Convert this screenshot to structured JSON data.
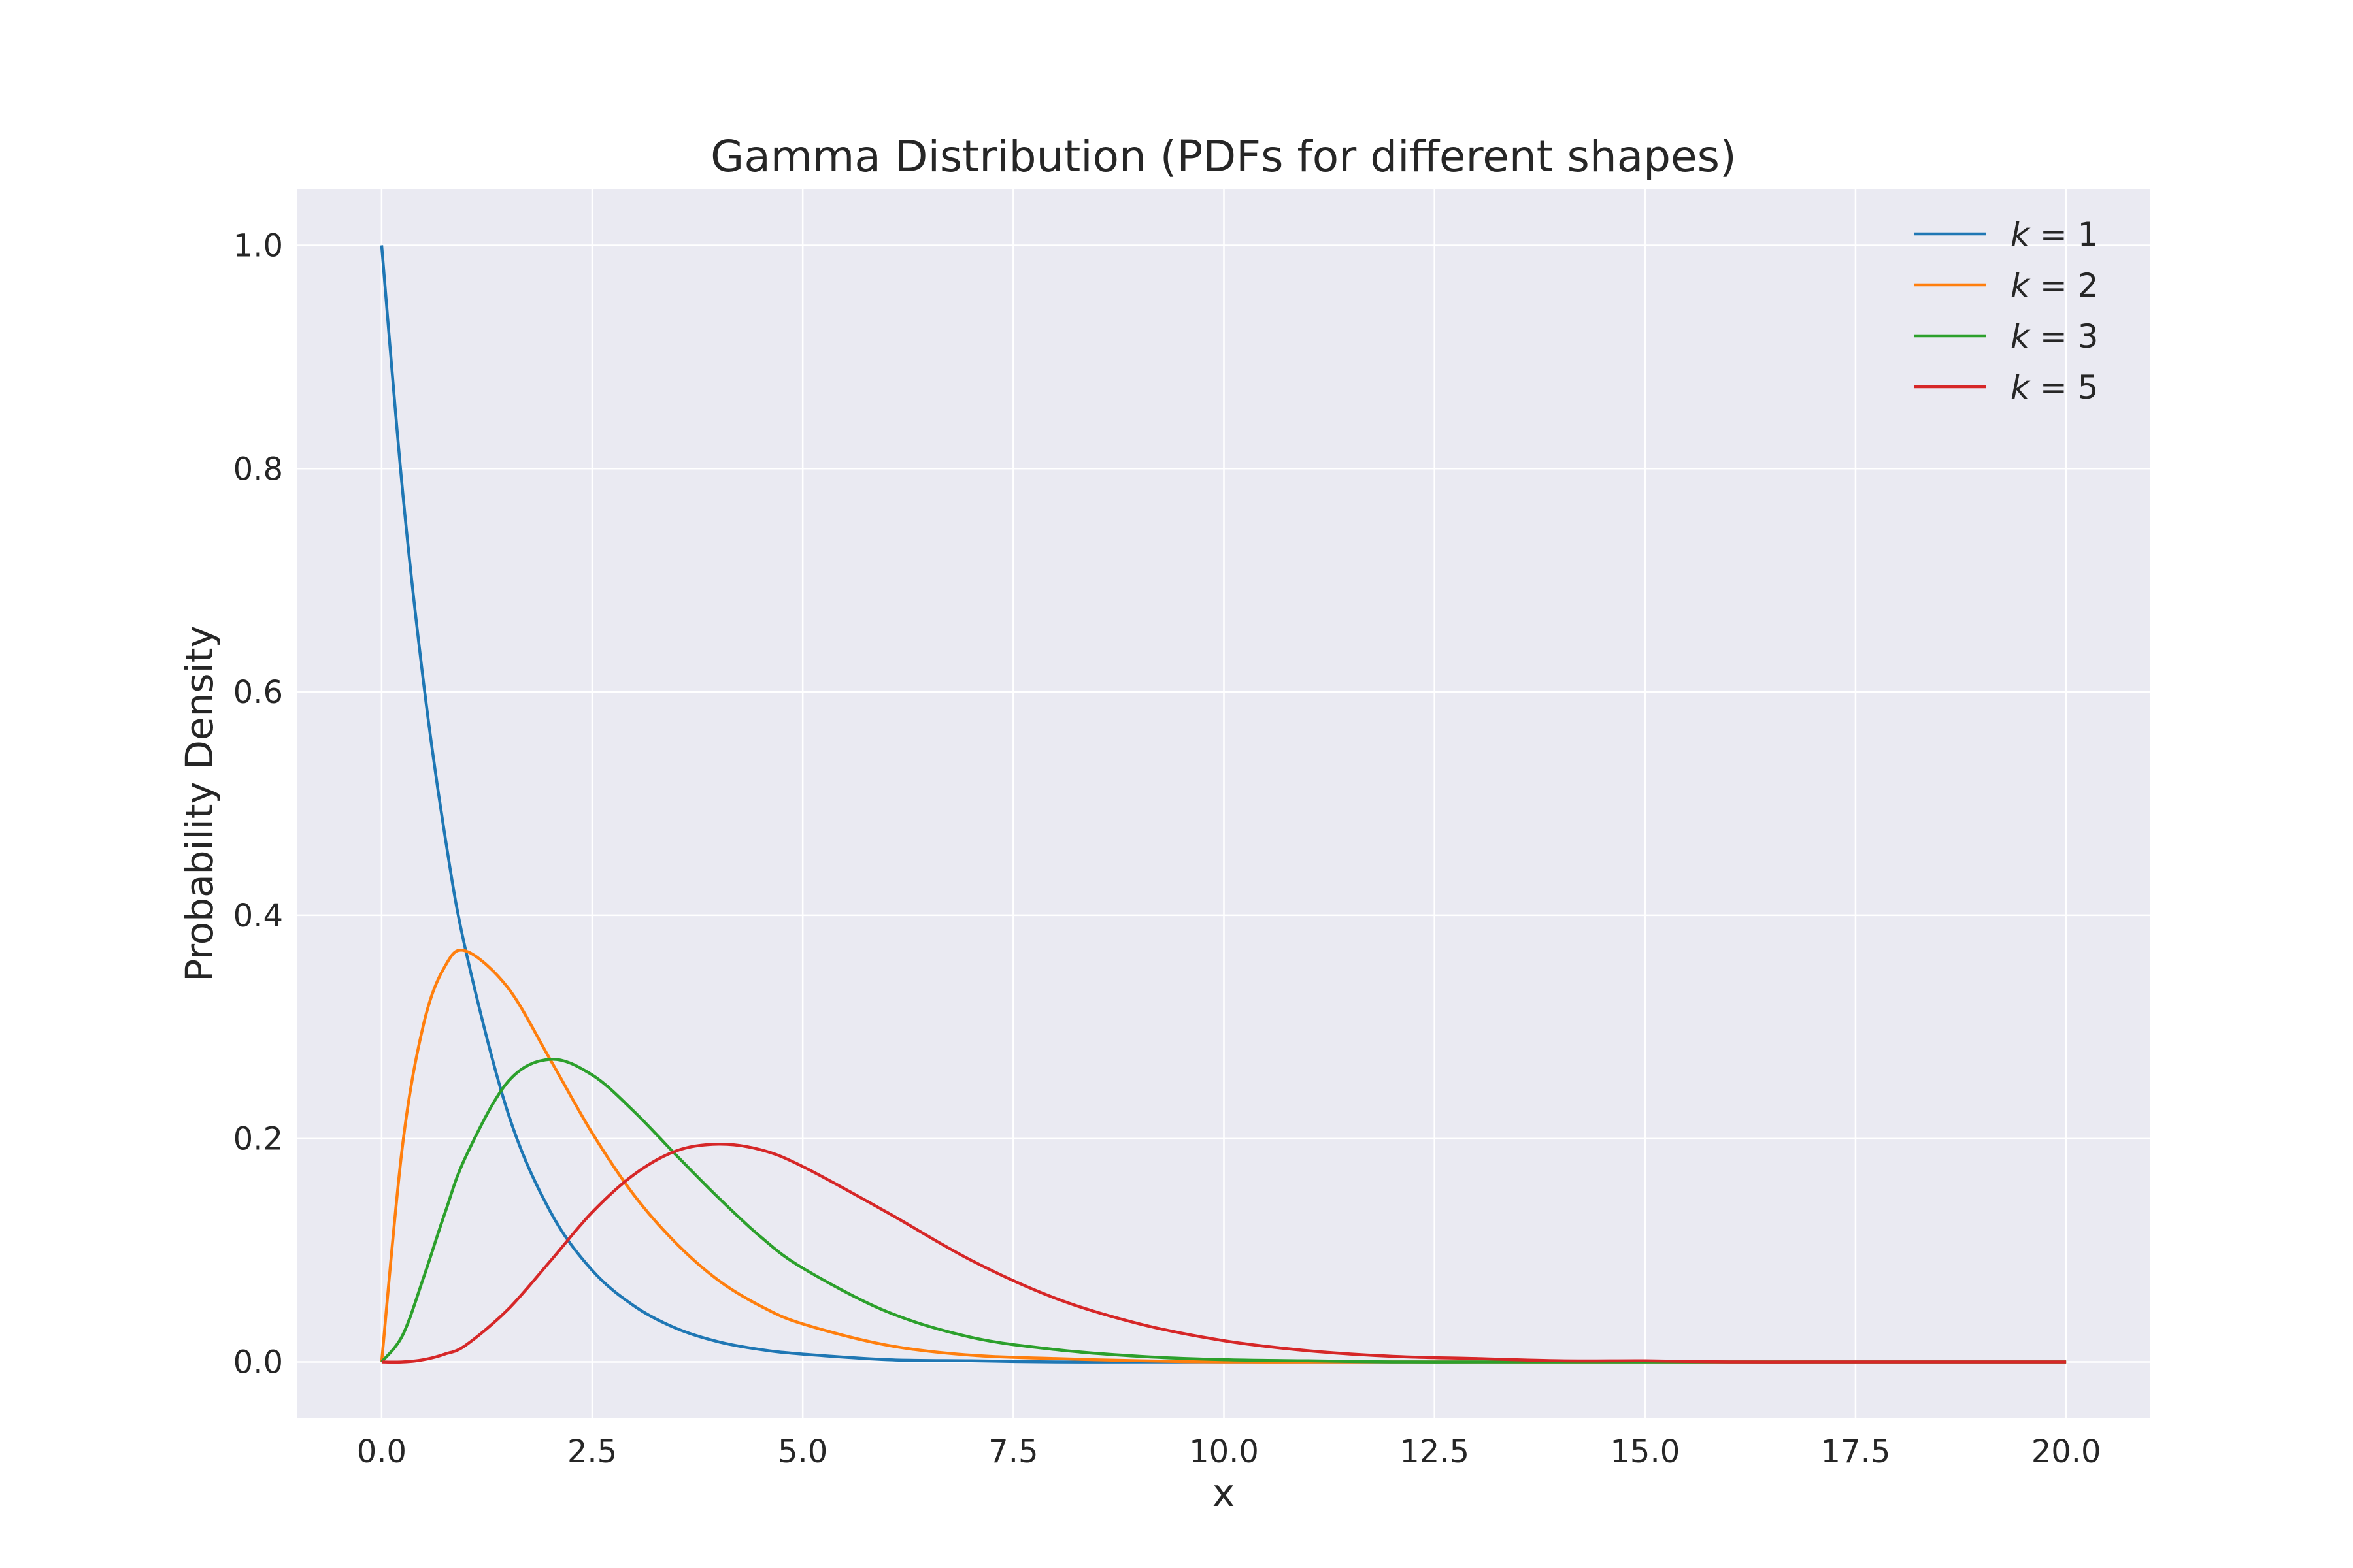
{
  "chart_data": {
    "type": "line",
    "title": "Gamma Distribution (PDFs for different shapes)",
    "xlabel": "x",
    "ylabel": "Probability Density",
    "xlim": [
      -1.0,
      21.0
    ],
    "ylim": [
      -0.05,
      1.05
    ],
    "x_ticks": [
      "0.0",
      "2.5",
      "5.0",
      "7.5",
      "10.0",
      "12.5",
      "15.0",
      "17.5",
      "20.0"
    ],
    "y_ticks": [
      "0.0",
      "0.2",
      "0.4",
      "0.6",
      "0.8",
      "1.0"
    ],
    "grid": true,
    "legend_position": "top-right",
    "x": [
      0,
      0.25,
      0.5,
      0.75,
      1,
      1.5,
      2,
      2.5,
      3,
      3.5,
      4,
      4.5,
      5,
      6,
      7,
      8,
      9,
      10,
      11,
      12,
      13,
      14,
      15,
      16,
      17,
      18,
      19,
      20
    ],
    "series": [
      {
        "name": "k = 1",
        "color": "#1f77b4",
        "values": [
          1.0,
          0.779,
          0.607,
          0.472,
          0.368,
          0.223,
          0.135,
          0.082,
          0.05,
          0.03,
          0.018,
          0.011,
          0.007,
          0.002,
          0.001,
          0.0,
          0.0,
          0.0,
          0.0,
          0.0,
          0.0,
          0.0,
          0.0,
          0.0,
          0.0,
          0.0,
          0.0,
          0.0
        ]
      },
      {
        "name": "k = 2",
        "color": "#ff7f0e",
        "values": [
          0.0,
          0.195,
          0.303,
          0.354,
          0.368,
          0.335,
          0.271,
          0.205,
          0.149,
          0.106,
          0.073,
          0.05,
          0.034,
          0.015,
          0.006,
          0.003,
          0.001,
          0.0,
          0.0,
          0.0,
          0.0,
          0.0,
          0.0,
          0.0,
          0.0,
          0.0,
          0.0,
          0.0
        ]
      },
      {
        "name": "k = 3",
        "color": "#2ca02c",
        "values": [
          0.0,
          0.024,
          0.076,
          0.133,
          0.184,
          0.251,
          0.271,
          0.257,
          0.224,
          0.185,
          0.147,
          0.112,
          0.084,
          0.045,
          0.022,
          0.011,
          0.005,
          0.002,
          0.001,
          0.0,
          0.0,
          0.0,
          0.0,
          0.0,
          0.0,
          0.0,
          0.0,
          0.0
        ]
      },
      {
        "name": "k = 5",
        "color": "#d62728",
        "values": [
          0.0,
          0.0,
          0.002,
          0.007,
          0.015,
          0.047,
          0.09,
          0.134,
          0.168,
          0.189,
          0.195,
          0.19,
          0.175,
          0.134,
          0.091,
          0.057,
          0.034,
          0.019,
          0.01,
          0.005,
          0.003,
          0.001,
          0.001,
          0.0,
          0.0,
          0.0,
          0.0,
          0.0
        ]
      }
    ]
  },
  "style": {
    "plot_background": "#eaeaf2",
    "grid_color": "#ffffff",
    "text_color": "#262626"
  }
}
